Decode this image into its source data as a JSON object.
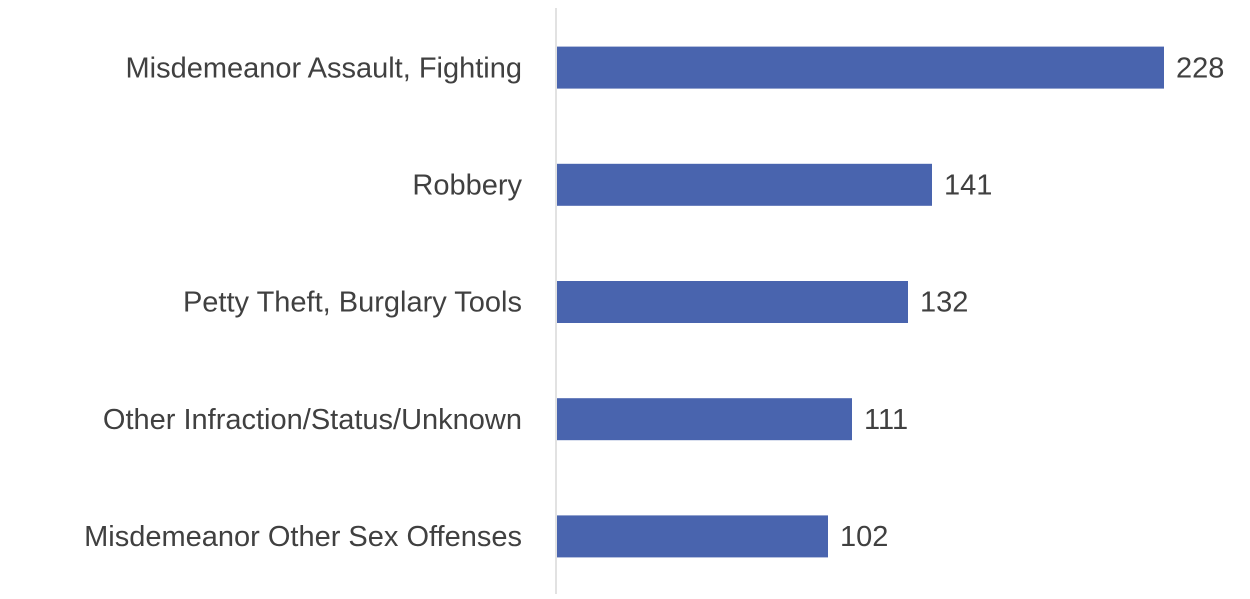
{
  "chart_data": {
    "type": "barh",
    "categories": [
      "Misdemeanor Assault, Fighting",
      "Robbery",
      "Petty Theft, Burglary Tools",
      "Other Infraction/Status/Unknown",
      "Misdemeanor Other Sex Offenses"
    ],
    "values": [
      228,
      141,
      132,
      111,
      102
    ],
    "color": "#4964ae"
  }
}
